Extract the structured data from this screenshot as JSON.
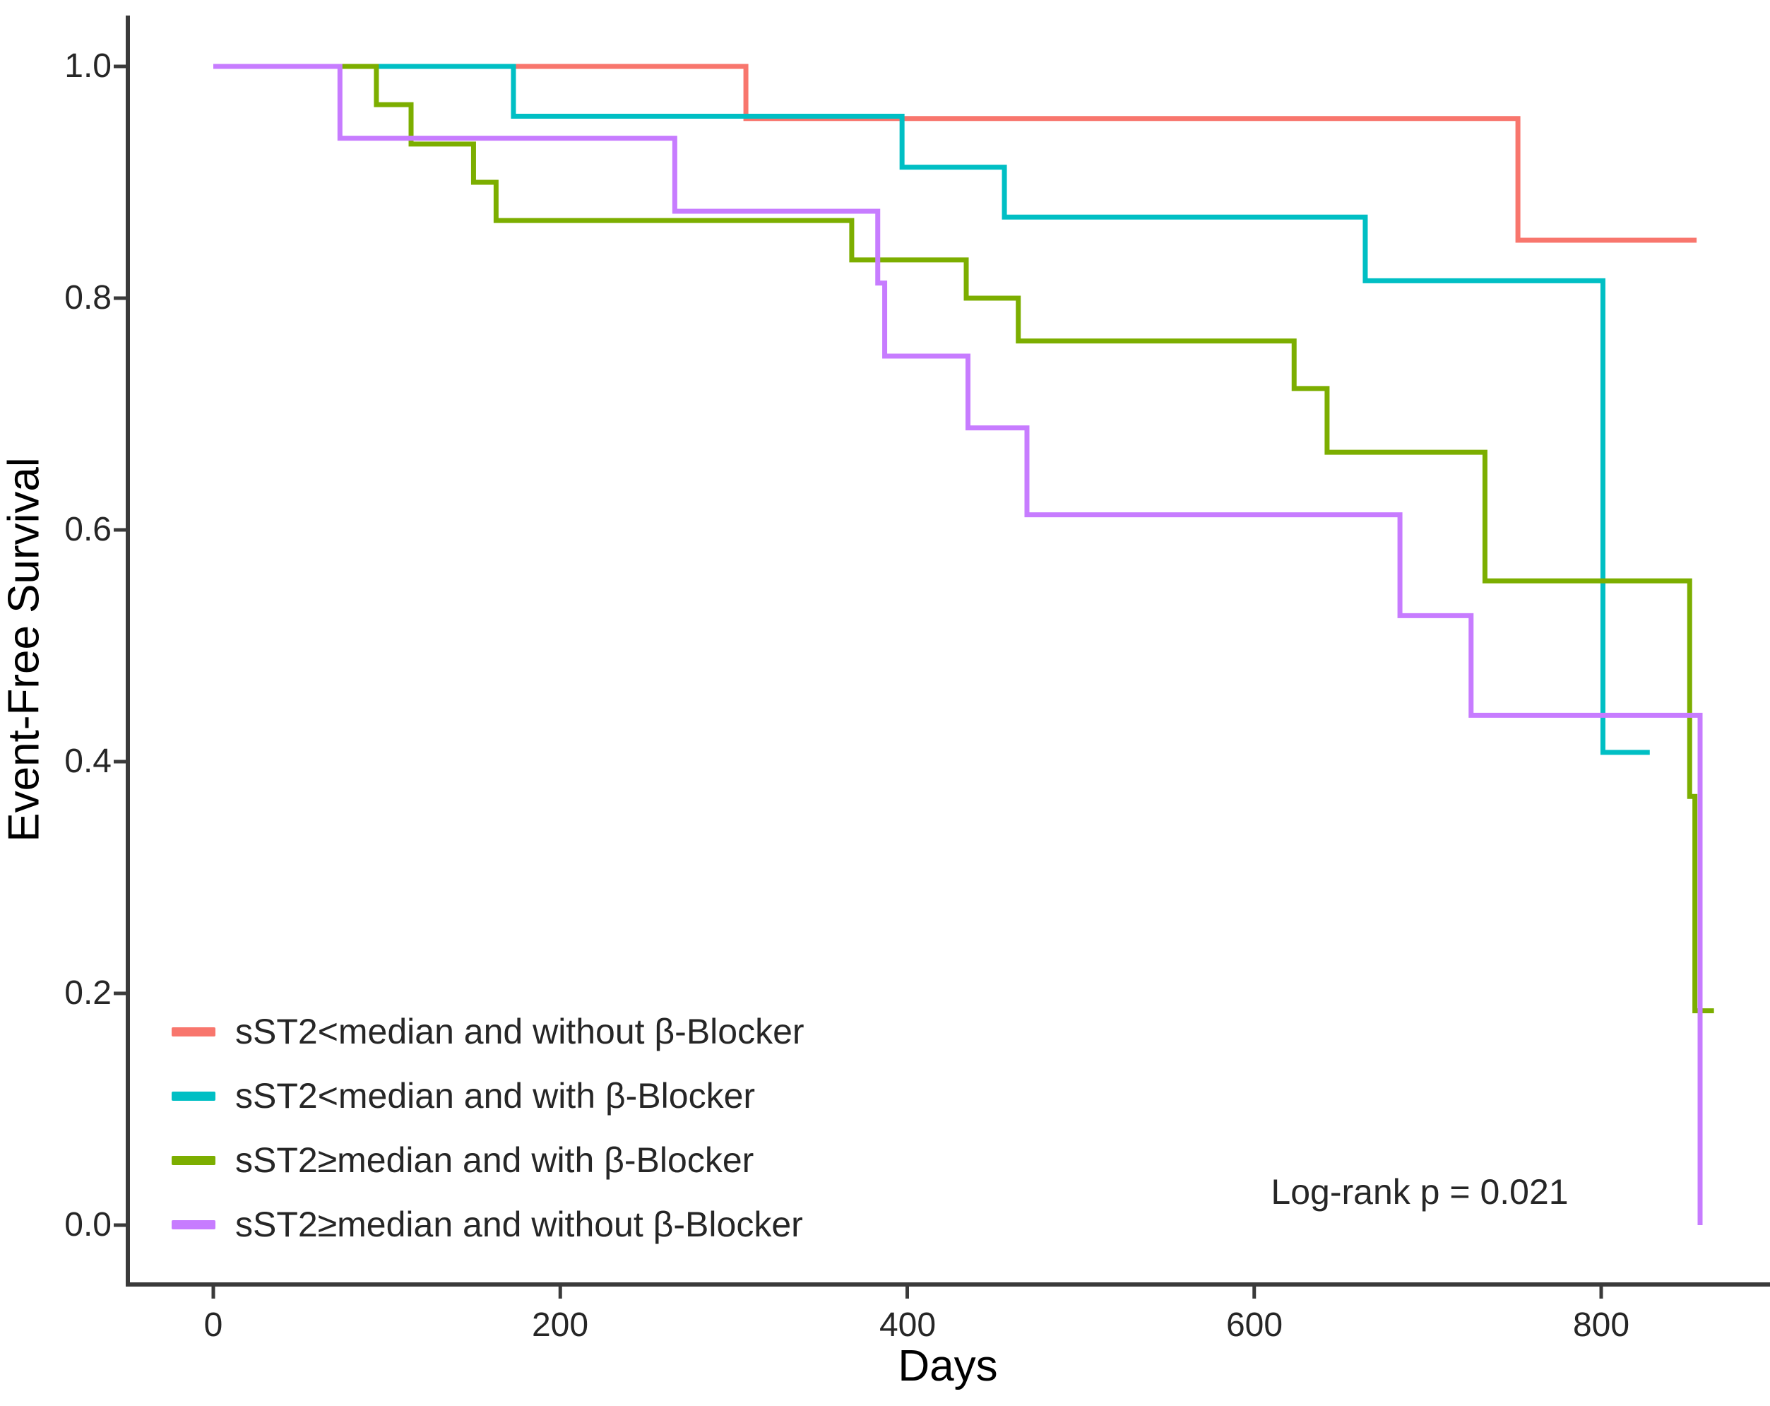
{
  "chart_data": {
    "type": "line",
    "subtype": "kaplan-meier-step-curves",
    "title": "",
    "xlabel": "Days",
    "ylabel": "Event-Free Survival",
    "x_ticks": [
      {
        "label": "0",
        "value": 0
      },
      {
        "label": "200",
        "value": 200
      },
      {
        "label": "400",
        "value": 400
      },
      {
        "label": "600",
        "value": 600
      },
      {
        "label": "800",
        "value": 800
      }
    ],
    "y_ticks": [
      {
        "label": "1.0",
        "value": 1.0
      },
      {
        "label": "0.8",
        "value": 0.8
      },
      {
        "label": "0.6",
        "value": 0.6
      },
      {
        "label": "0.4",
        "value": 0.4
      },
      {
        "label": "0.2",
        "value": 0.2
      },
      {
        "label": "0.0",
        "value": 0.0
      }
    ],
    "xlim": [
      -50,
      898
    ],
    "ylim": [
      0.0,
      1.0
    ],
    "grid": false,
    "legend_position": "inside-bottom-left",
    "annotation": "Log-rank p = 0.021",
    "series": [
      {
        "label": "sST2<median and without β-Blocker",
        "color": "#F8766D",
        "steps": [
          [
            0,
            1.0
          ],
          [
            307,
            0.955
          ],
          [
            752,
            0.85
          ],
          [
            855,
            0.85
          ]
        ]
      },
      {
        "label": "sST2<median and with β-Blocker",
        "color": "#00BFC4",
        "steps": [
          [
            0,
            1.0
          ],
          [
            173,
            0.957
          ],
          [
            397,
            0.913
          ],
          [
            456,
            0.87
          ],
          [
            664,
            0.815
          ],
          [
            801,
            0.408
          ],
          [
            828,
            0.408
          ]
        ]
      },
      {
        "label": "sST2≥median and with β-Blocker",
        "color": "#7CAE00",
        "steps": [
          [
            0,
            1.0
          ],
          [
            94,
            0.967
          ],
          [
            114,
            0.933
          ],
          [
            150,
            0.9
          ],
          [
            163,
            0.867
          ],
          [
            368,
            0.833
          ],
          [
            434,
            0.8
          ],
          [
            464,
            0.763
          ],
          [
            623,
            0.722
          ],
          [
            642,
            0.667
          ],
          [
            733,
            0.556
          ],
          [
            851,
            0.37
          ],
          [
            854,
            0.185
          ],
          [
            865,
            0.185
          ]
        ]
      },
      {
        "label": "sST2≥median and without β-Blocker",
        "color": "#C77CFF",
        "steps": [
          [
            0,
            1.0
          ],
          [
            73,
            0.938
          ],
          [
            266,
            0.875
          ],
          [
            383,
            0.813
          ],
          [
            387,
            0.75
          ],
          [
            435,
            0.688
          ],
          [
            469,
            0.613
          ],
          [
            684,
            0.526
          ],
          [
            725,
            0.44
          ],
          [
            857,
            0.0
          ]
        ]
      }
    ]
  }
}
